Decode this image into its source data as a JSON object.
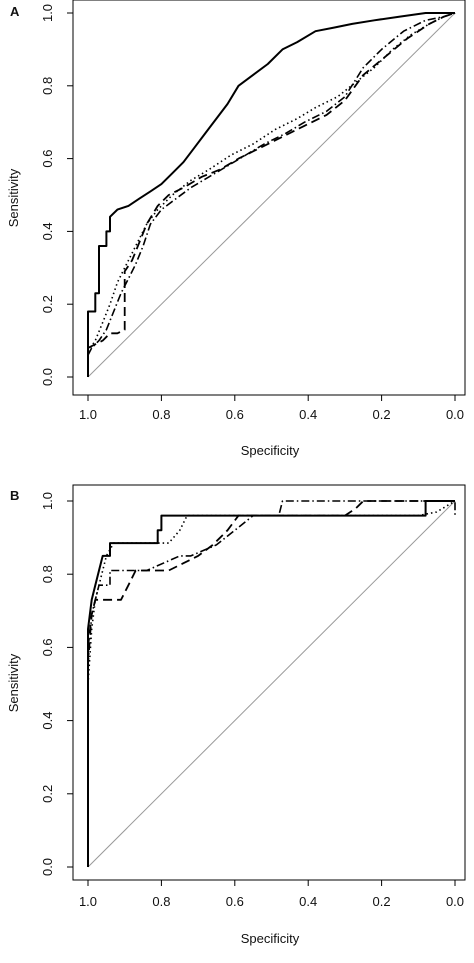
{
  "chart_data": [
    {
      "panel": "A",
      "type": "line",
      "xlabel": "Specificity",
      "ylabel": "Sensitivity",
      "xlim": [
        1.0,
        0.0
      ],
      "ylim": [
        0.0,
        1.0
      ],
      "x_ticks": [
        "1.0",
        "0.8",
        "0.6",
        "0.4",
        "0.2",
        "0.0"
      ],
      "y_ticks": [
        "0.0",
        "0.2",
        "0.4",
        "0.6",
        "0.8",
        "1.0"
      ],
      "grid": false,
      "legend": "none",
      "reference_line": {
        "from": [
          1.0,
          0.0
        ],
        "to": [
          0.0,
          1.0
        ],
        "color": "#999999"
      },
      "series": [
        {
          "style": "solid",
          "color": "#000000",
          "points": [
            [
              1.0,
              0.0
            ],
            [
              1.0,
              0.18
            ],
            [
              0.98,
              0.18
            ],
            [
              0.98,
              0.23
            ],
            [
              0.97,
              0.23
            ],
            [
              0.97,
              0.36
            ],
            [
              0.95,
              0.36
            ],
            [
              0.95,
              0.4
            ],
            [
              0.94,
              0.4
            ],
            [
              0.94,
              0.44
            ],
            [
              0.92,
              0.46
            ],
            [
              0.89,
              0.47
            ],
            [
              0.86,
              0.49
            ],
            [
              0.83,
              0.51
            ],
            [
              0.8,
              0.53
            ],
            [
              0.77,
              0.56
            ],
            [
              0.74,
              0.59
            ],
            [
              0.71,
              0.63
            ],
            [
              0.68,
              0.67
            ],
            [
              0.65,
              0.71
            ],
            [
              0.62,
              0.75
            ],
            [
              0.59,
              0.8
            ],
            [
              0.55,
              0.83
            ],
            [
              0.51,
              0.86
            ],
            [
              0.47,
              0.9
            ],
            [
              0.43,
              0.92
            ],
            [
              0.38,
              0.95
            ],
            [
              0.33,
              0.96
            ],
            [
              0.28,
              0.97
            ],
            [
              0.22,
              0.98
            ],
            [
              0.15,
              0.99
            ],
            [
              0.08,
              1.0
            ],
            [
              0.0,
              1.0
            ]
          ]
        },
        {
          "style": "dotted",
          "color": "#000000",
          "points": [
            [
              1.0,
              0.07
            ],
            [
              0.98,
              0.1
            ],
            [
              0.96,
              0.15
            ],
            [
              0.94,
              0.2
            ],
            [
              0.92,
              0.26
            ],
            [
              0.9,
              0.3
            ],
            [
              0.87,
              0.36
            ],
            [
              0.84,
              0.42
            ],
            [
              0.81,
              0.46
            ],
            [
              0.77,
              0.5
            ],
            [
              0.72,
              0.54
            ],
            [
              0.67,
              0.57
            ],
            [
              0.61,
              0.61
            ],
            [
              0.55,
              0.64
            ],
            [
              0.49,
              0.68
            ],
            [
              0.43,
              0.71
            ],
            [
              0.38,
              0.74
            ],
            [
              0.32,
              0.77
            ],
            [
              0.27,
              0.81
            ],
            [
              0.22,
              0.85
            ],
            [
              0.17,
              0.9
            ],
            [
              0.12,
              0.94
            ],
            [
              0.07,
              0.97
            ],
            [
              0.03,
              0.99
            ],
            [
              0.0,
              1.0
            ]
          ]
        },
        {
          "style": "dashdot",
          "color": "#000000",
          "points": [
            [
              1.0,
              0.06
            ],
            [
              0.99,
              0.08
            ],
            [
              0.97,
              0.1
            ],
            [
              0.95,
              0.13
            ],
            [
              0.93,
              0.18
            ],
            [
              0.91,
              0.23
            ],
            [
              0.89,
              0.27
            ],
            [
              0.87,
              0.31
            ],
            [
              0.85,
              0.36
            ],
            [
              0.83,
              0.42
            ],
            [
              0.8,
              0.46
            ],
            [
              0.76,
              0.49
            ],
            [
              0.72,
              0.52
            ],
            [
              0.67,
              0.55
            ],
            [
              0.62,
              0.58
            ],
            [
              0.57,
              0.61
            ],
            [
              0.52,
              0.64
            ],
            [
              0.46,
              0.67
            ],
            [
              0.41,
              0.7
            ],
            [
              0.35,
              0.73
            ],
            [
              0.3,
              0.77
            ],
            [
              0.25,
              0.85
            ],
            [
              0.2,
              0.9
            ],
            [
              0.14,
              0.95
            ],
            [
              0.08,
              0.98
            ],
            [
              0.03,
              0.99
            ],
            [
              0.0,
              1.0
            ]
          ]
        },
        {
          "style": "dashed",
          "color": "#000000",
          "points": [
            [
              1.0,
              0.08
            ],
            [
              0.96,
              0.1
            ],
            [
              0.94,
              0.12
            ],
            [
              0.92,
              0.12
            ],
            [
              0.9,
              0.13
            ],
            [
              0.9,
              0.29
            ],
            [
              0.88,
              0.32
            ],
            [
              0.86,
              0.37
            ],
            [
              0.84,
              0.42
            ],
            [
              0.81,
              0.47
            ],
            [
              0.78,
              0.5
            ],
            [
              0.74,
              0.52
            ],
            [
              0.69,
              0.55
            ],
            [
              0.64,
              0.57
            ],
            [
              0.59,
              0.6
            ],
            [
              0.53,
              0.63
            ],
            [
              0.47,
              0.66
            ],
            [
              0.41,
              0.69
            ],
            [
              0.35,
              0.72
            ],
            [
              0.3,
              0.76
            ],
            [
              0.25,
              0.83
            ],
            [
              0.19,
              0.88
            ],
            [
              0.13,
              0.93
            ],
            [
              0.07,
              0.97
            ],
            [
              0.03,
              0.99
            ],
            [
              0.0,
              1.0
            ]
          ]
        }
      ]
    },
    {
      "panel": "B",
      "type": "line",
      "xlabel": "Specificity",
      "ylabel": "Sensitivity",
      "xlim": [
        1.0,
        0.0
      ],
      "ylim": [
        0.0,
        1.0
      ],
      "x_ticks": [
        "1.0",
        "0.8",
        "0.6",
        "0.4",
        "0.2",
        "0.0"
      ],
      "y_ticks": [
        "0.0",
        "0.2",
        "0.4",
        "0.6",
        "0.8",
        "1.0"
      ],
      "grid": false,
      "legend": "none",
      "reference_line": {
        "from": [
          1.0,
          0.0
        ],
        "to": [
          0.0,
          1.0
        ],
        "color": "#999999"
      },
      "series": [
        {
          "style": "solid",
          "color": "#000000",
          "points": [
            [
              1.0,
              0.0
            ],
            [
              1.0,
              0.65
            ],
            [
              0.99,
              0.73
            ],
            [
              0.98,
              0.77
            ],
            [
              0.97,
              0.81
            ],
            [
              0.96,
              0.85
            ],
            [
              0.94,
              0.85
            ],
            [
              0.94,
              0.885
            ],
            [
              0.81,
              0.885
            ],
            [
              0.81,
              0.92
            ],
            [
              0.8,
              0.92
            ],
            [
              0.8,
              0.96
            ],
            [
              0.08,
              0.96
            ],
            [
              0.08,
              1.0
            ],
            [
              0.0,
              1.0
            ]
          ]
        },
        {
          "style": "dotted",
          "color": "#000000",
          "points": [
            [
              1.0,
              0.5
            ],
            [
              0.99,
              0.65
            ],
            [
              0.98,
              0.73
            ],
            [
              0.97,
              0.77
            ],
            [
              0.96,
              0.81
            ],
            [
              0.95,
              0.85
            ],
            [
              0.93,
              0.885
            ],
            [
              0.78,
              0.885
            ],
            [
              0.75,
              0.92
            ],
            [
              0.73,
              0.96
            ],
            [
              0.5,
              0.96
            ],
            [
              0.3,
              0.96
            ],
            [
              0.1,
              0.96
            ],
            [
              0.05,
              0.97
            ],
            [
              0.0,
              1.0
            ]
          ]
        },
        {
          "style": "dashdot",
          "color": "#000000",
          "points": [
            [
              1.0,
              0.55
            ],
            [
              0.99,
              0.69
            ],
            [
              0.98,
              0.73
            ],
            [
              0.97,
              0.77
            ],
            [
              0.94,
              0.77
            ],
            [
              0.94,
              0.81
            ],
            [
              0.84,
              0.81
            ],
            [
              0.75,
              0.85
            ],
            [
              0.72,
              0.85
            ],
            [
              0.65,
              0.88
            ],
            [
              0.6,
              0.92
            ],
            [
              0.55,
              0.96
            ],
            [
              0.48,
              0.96
            ],
            [
              0.47,
              1.0
            ],
            [
              0.0,
              1.0
            ],
            [
              0.0,
              0.96
            ]
          ]
        },
        {
          "style": "dashed",
          "color": "#000000",
          "points": [
            [
              1.0,
              0.6
            ],
            [
              0.99,
              0.69
            ],
            [
              0.98,
              0.73
            ],
            [
              0.91,
              0.73
            ],
            [
              0.89,
              0.77
            ],
            [
              0.87,
              0.81
            ],
            [
              0.78,
              0.81
            ],
            [
              0.74,
              0.83
            ],
            [
              0.7,
              0.85
            ],
            [
              0.66,
              0.88
            ],
            [
              0.62,
              0.92
            ],
            [
              0.59,
              0.96
            ],
            [
              0.3,
              0.96
            ],
            [
              0.27,
              0.98
            ],
            [
              0.25,
              1.0
            ],
            [
              0.0,
              1.0
            ]
          ]
        }
      ]
    }
  ]
}
